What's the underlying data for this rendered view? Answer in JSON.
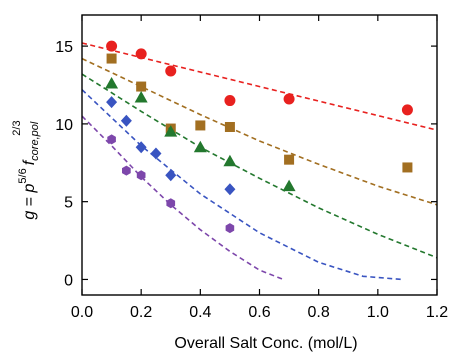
{
  "chart_data": {
    "type": "scatter",
    "xlabel": "Overall Salt Conc. (mol/L)",
    "ylabel": {
      "lhs": "g",
      "eq": " = ",
      "p": "p",
      "p_exp": "5/6",
      "f": "f",
      "f_sub": "core,pol",
      "f_exp": "2/3"
    },
    "xlim": [
      0.0,
      1.2
    ],
    "ylim": [
      -1.0,
      17.0
    ],
    "xticks": [
      "0.0",
      "0.2",
      "0.4",
      "0.6",
      "0.8",
      "1.0",
      "1.2"
    ],
    "yticks": [
      "0",
      "5",
      "10",
      "15"
    ],
    "series": [
      {
        "marker": "circle",
        "color": "#e8211f",
        "points": [
          [
            0.1,
            15.0
          ],
          [
            0.2,
            14.5
          ],
          [
            0.3,
            13.4
          ],
          [
            0.5,
            11.5
          ],
          [
            0.7,
            11.6
          ],
          [
            1.1,
            10.9
          ]
        ],
        "fit": [
          [
            0.0,
            15.2
          ],
          [
            1.2,
            9.6
          ]
        ]
      },
      {
        "marker": "square",
        "color": "#a26f21",
        "points": [
          [
            0.1,
            14.2
          ],
          [
            0.2,
            12.4
          ],
          [
            0.3,
            9.7
          ],
          [
            0.4,
            9.9
          ],
          [
            0.5,
            9.8
          ],
          [
            0.7,
            7.7
          ],
          [
            1.1,
            7.2
          ]
        ],
        "fit": [
          [
            0.0,
            14.2
          ],
          [
            0.2,
            12.4
          ],
          [
            0.4,
            10.6
          ],
          [
            0.6,
            8.9
          ],
          [
            0.8,
            7.4
          ],
          [
            1.0,
            6.0
          ],
          [
            1.2,
            4.8
          ]
        ]
      },
      {
        "marker": "triangle",
        "color": "#23782e",
        "points": [
          [
            0.1,
            12.6
          ],
          [
            0.2,
            11.7
          ],
          [
            0.3,
            9.5
          ],
          [
            0.4,
            8.5
          ],
          [
            0.5,
            7.6
          ],
          [
            0.7,
            6.0
          ]
        ],
        "fit": [
          [
            0.0,
            13.2
          ],
          [
            0.2,
            10.8
          ],
          [
            0.4,
            8.5
          ],
          [
            0.6,
            6.5
          ],
          [
            0.8,
            4.6
          ],
          [
            1.0,
            2.9
          ],
          [
            1.2,
            1.4
          ]
        ]
      },
      {
        "marker": "diamond",
        "color": "#3954c1",
        "points": [
          [
            0.1,
            11.4
          ],
          [
            0.15,
            10.2
          ],
          [
            0.2,
            8.5
          ],
          [
            0.25,
            8.1
          ],
          [
            0.3,
            6.7
          ],
          [
            0.5,
            5.8
          ]
        ],
        "fit": [
          [
            0.0,
            12.2
          ],
          [
            0.2,
            8.6
          ],
          [
            0.4,
            5.5
          ],
          [
            0.6,
            3.0
          ],
          [
            0.8,
            1.1
          ],
          [
            0.95,
            0.2
          ],
          [
            1.08,
            0.0
          ]
        ]
      },
      {
        "marker": "hexagon",
        "color": "#7d47ab",
        "points": [
          [
            0.1,
            9.0
          ],
          [
            0.15,
            7.0
          ],
          [
            0.2,
            6.7
          ],
          [
            0.3,
            4.9
          ],
          [
            0.5,
            3.3
          ]
        ],
        "fit": [
          [
            0.0,
            10.5
          ],
          [
            0.1,
            8.6
          ],
          [
            0.2,
            6.6
          ],
          [
            0.3,
            4.8
          ],
          [
            0.4,
            3.2
          ],
          [
            0.5,
            1.8
          ],
          [
            0.6,
            0.6
          ],
          [
            0.68,
            0.0
          ]
        ]
      }
    ]
  }
}
